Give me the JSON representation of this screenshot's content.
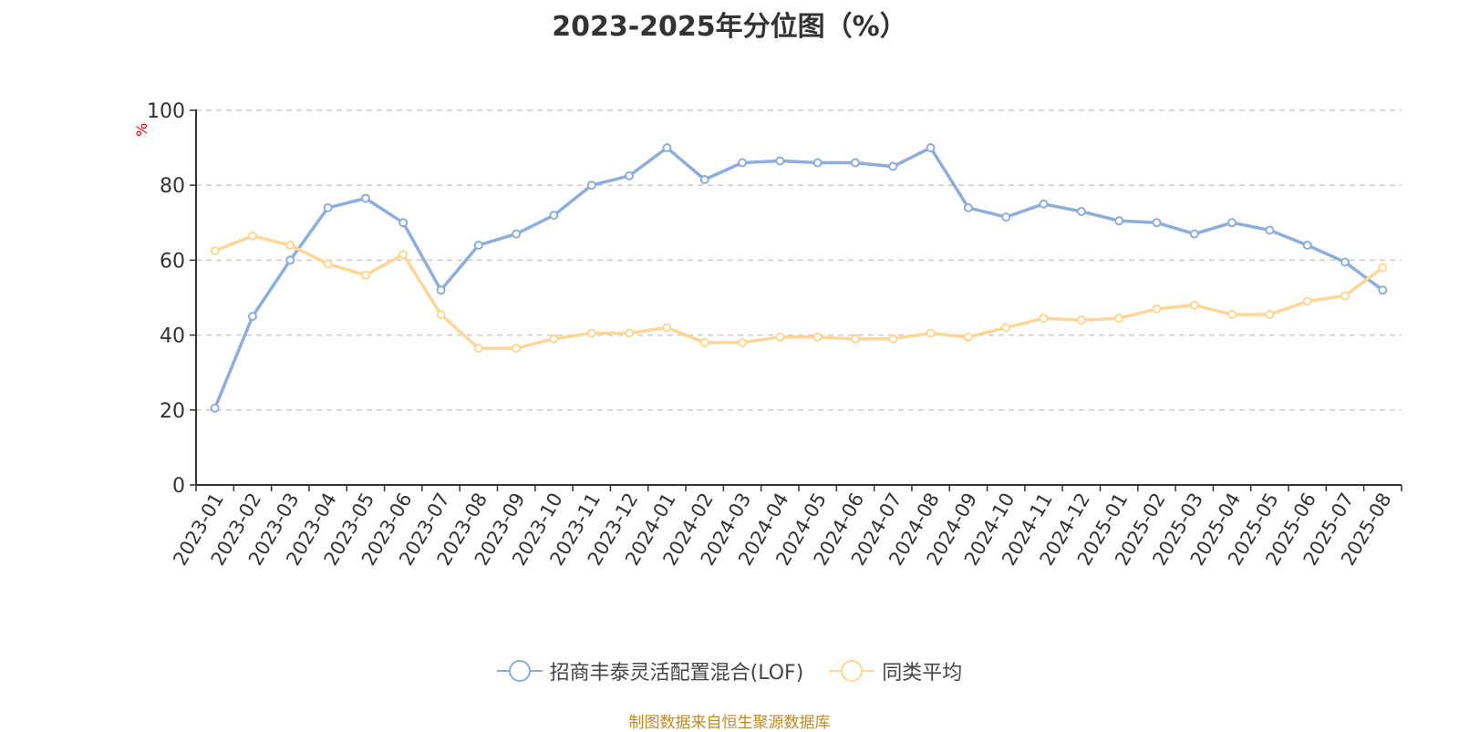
{
  "header": {
    "title": "2023-2025年分位图（%）"
  },
  "yaxis": {
    "unit": "%"
  },
  "footer": {
    "source": "制图数据来自恒生聚源数据库"
  },
  "colors": {
    "series_fund": "#8fadd9",
    "series_avg": "#fcd797",
    "grid": "#cccccc",
    "axis": "#333333"
  },
  "chart_data": {
    "type": "line",
    "title": "2023-2025年分位图（%）",
    "xlabel": "",
    "ylabel": "%",
    "ylim": [
      0,
      100
    ],
    "yticks": [
      0,
      20,
      40,
      60,
      80,
      100
    ],
    "grid": true,
    "legend_position": "bottom",
    "categories": [
      "2023-01",
      "2023-02",
      "2023-03",
      "2023-04",
      "2023-05",
      "2023-06",
      "2023-07",
      "2023-08",
      "2023-09",
      "2023-10",
      "2023-11",
      "2023-12",
      "2024-01",
      "2024-02",
      "2024-03",
      "2024-04",
      "2024-05",
      "2024-06",
      "2024-07",
      "2024-08",
      "2024-09",
      "2024-10",
      "2024-11",
      "2024-12",
      "2025-01",
      "2025-02",
      "2025-03",
      "2025-04",
      "2025-05",
      "2025-06",
      "2025-07",
      "2025-08"
    ],
    "series": [
      {
        "name": "招商丰泰灵活配置混合(LOF)",
        "color": "#8fadd9",
        "values": [
          20.5,
          45,
          60,
          74,
          76.5,
          70,
          52,
          64,
          67,
          72,
          80,
          82.5,
          90,
          81.5,
          86,
          86.5,
          86,
          86,
          85,
          90,
          74,
          71.5,
          75,
          73,
          70.5,
          70,
          67,
          70,
          68,
          64,
          59.5,
          52
        ]
      },
      {
        "name": "同类平均",
        "color": "#fcd797",
        "values": [
          62.5,
          66.5,
          64,
          59,
          56,
          61.5,
          45.5,
          36.5,
          36.5,
          39,
          40.5,
          40.5,
          42,
          38,
          38,
          39.5,
          39.5,
          39,
          39,
          40.5,
          39.5,
          42,
          44.5,
          44,
          44.5,
          47,
          48,
          45.5,
          45.5,
          49,
          50.5,
          58
        ]
      }
    ]
  }
}
